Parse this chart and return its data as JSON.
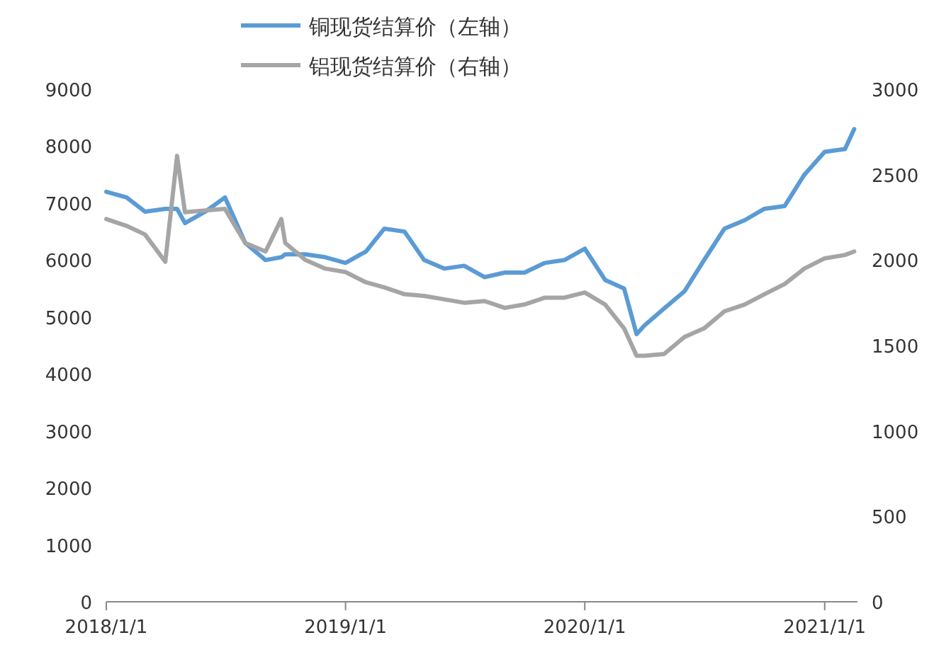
{
  "chart_data": {
    "type": "line",
    "x": [
      "2018-01-01",
      "2018-02-01",
      "2018-03-01",
      "2018-04-01",
      "2018-04-19",
      "2018-05-01",
      "2018-06-01",
      "2018-07-01",
      "2018-08-01",
      "2018-09-01",
      "2018-09-25",
      "2018-10-01",
      "2018-11-01",
      "2018-12-01",
      "2019-01-01",
      "2019-02-01",
      "2019-03-01",
      "2019-04-01",
      "2019-05-01",
      "2019-06-01",
      "2019-07-01",
      "2019-08-01",
      "2019-09-01",
      "2019-10-01",
      "2019-11-01",
      "2019-12-01",
      "2020-01-01",
      "2020-02-01",
      "2020-03-01",
      "2020-03-20",
      "2020-04-01",
      "2020-05-01",
      "2020-06-01",
      "2020-07-01",
      "2020-08-01",
      "2020-09-01",
      "2020-10-01",
      "2020-11-01",
      "2020-12-01",
      "2021-01-01",
      "2021-02-01",
      "2021-02-15"
    ],
    "series": [
      {
        "name": "铜现货结算价（左轴）",
        "color": "#5b9bd5",
        "axis": "y",
        "values": [
          7200,
          7100,
          6850,
          6900,
          6900,
          6650,
          6850,
          7100,
          6300,
          6000,
          6050,
          6100,
          6100,
          6050,
          5950,
          6150,
          6550,
          6500,
          6000,
          5850,
          5900,
          5700,
          5780,
          5780,
          5950,
          6000,
          6200,
          5650,
          5500,
          4700,
          4850,
          5150,
          5450,
          6000,
          6550,
          6700,
          6900,
          6950,
          7500,
          7900,
          7950,
          8300
        ]
      },
      {
        "name": "铝现货结算价（右轴）",
        "color": "#a5a5a5",
        "axis": "y2",
        "values": [
          2240,
          2200,
          2150,
          1990,
          2610,
          2280,
          2290,
          2300,
          2100,
          2050,
          2240,
          2100,
          2000,
          1950,
          1930,
          1870,
          1840,
          1800,
          1790,
          1770,
          1750,
          1760,
          1720,
          1740,
          1780,
          1780,
          1810,
          1740,
          1600,
          1440,
          1440,
          1450,
          1550,
          1600,
          1700,
          1740,
          1800,
          1860,
          1950,
          2010,
          2030,
          2050
        ]
      }
    ],
    "xlim": [
      "2018-01-01",
      "2021-02-20"
    ],
    "xticks": [
      {
        "value": "2018-01-01",
        "label": "2018/1/1"
      },
      {
        "value": "2019-01-01",
        "label": "2019/1/1"
      },
      {
        "value": "2020-01-01",
        "label": "2020/1/1"
      },
      {
        "value": "2021-01-01",
        "label": "2021/1/1"
      }
    ],
    "ylim": [
      0,
      9000
    ],
    "yticks": [
      0,
      1000,
      2000,
      3000,
      4000,
      5000,
      6000,
      7000,
      8000,
      9000
    ],
    "y2lim": [
      0,
      3000
    ],
    "y2ticks": [
      0,
      500,
      1000,
      1500,
      2000,
      2500,
      3000
    ],
    "legend": "top",
    "grid": false
  }
}
